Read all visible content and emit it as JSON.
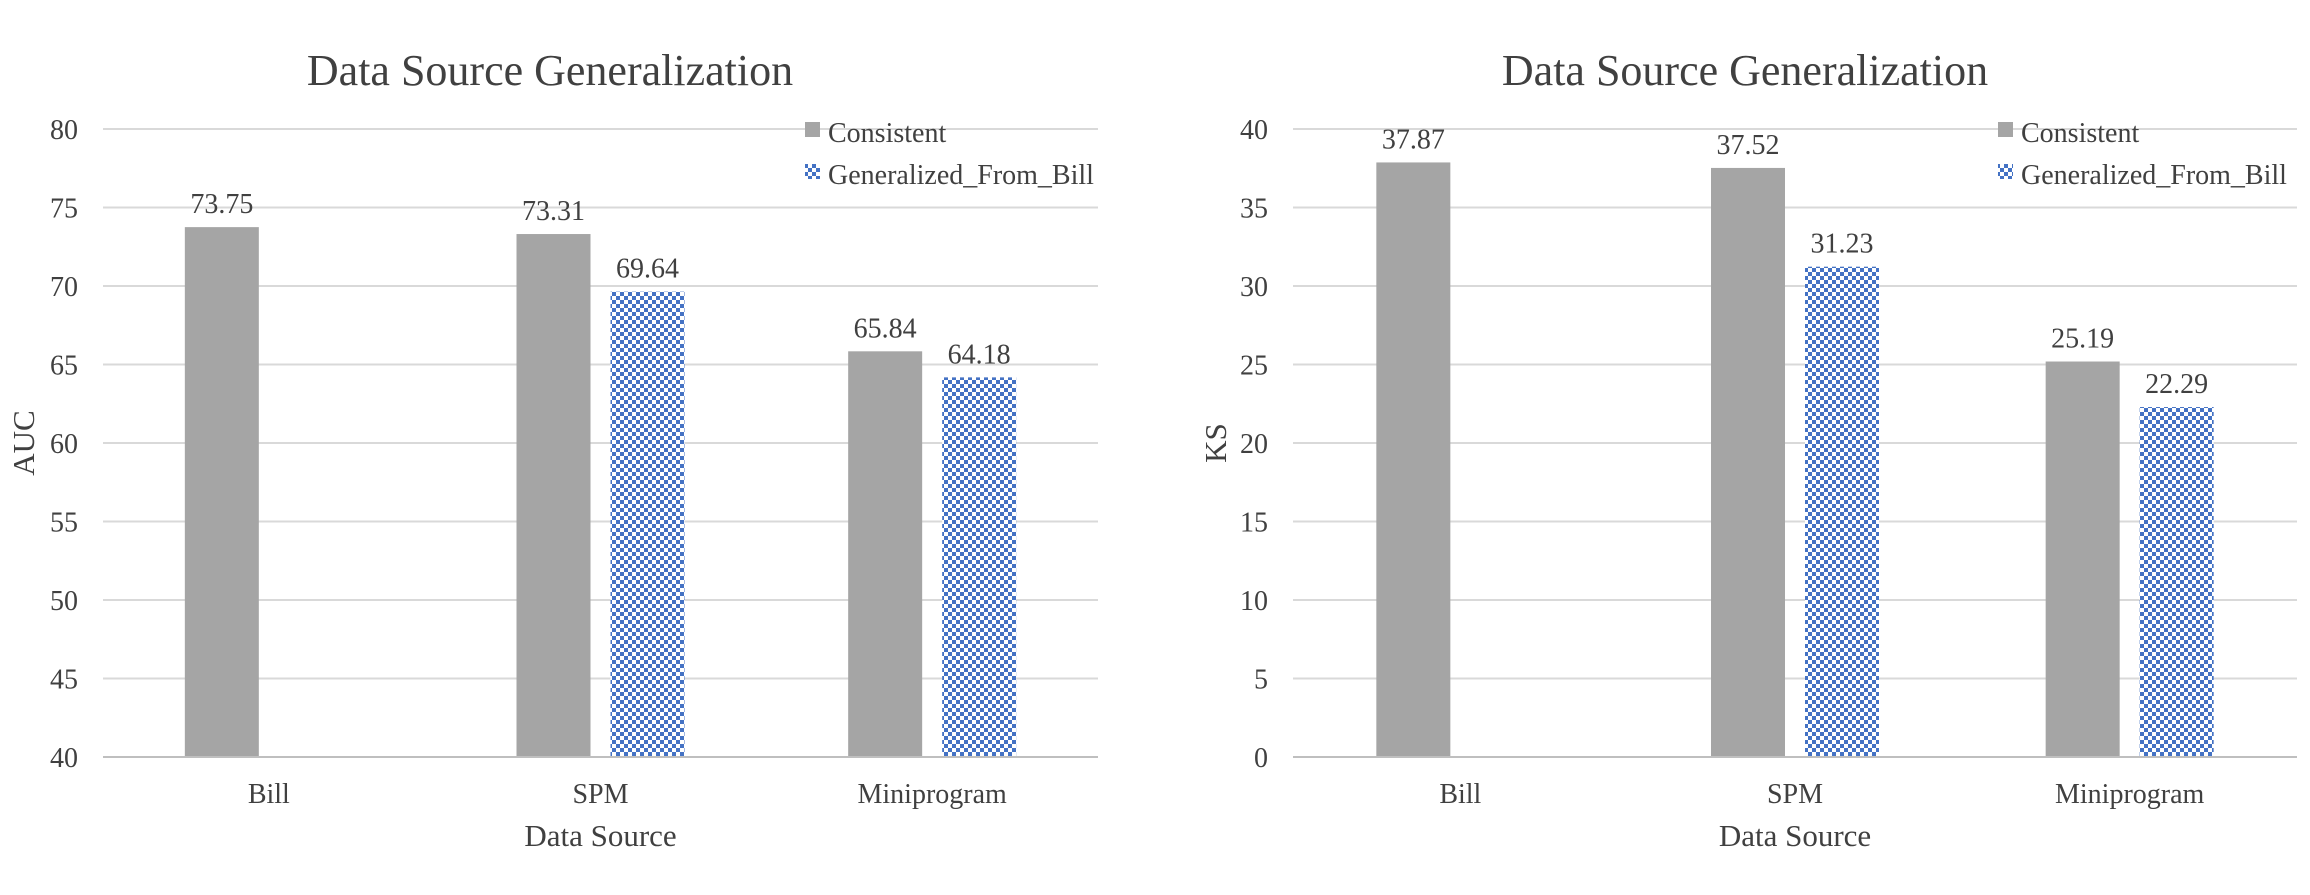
{
  "chart_data": [
    {
      "type": "bar",
      "title": "Data Source Generalization",
      "xlabel": "Data Source",
      "ylabel": "AUC",
      "ylim": [
        40,
        80
      ],
      "yticks": [
        40,
        45,
        50,
        55,
        60,
        65,
        70,
        75,
        80
      ],
      "categories": [
        "Bill",
        "SPM",
        "Miniprogram"
      ],
      "grid": true,
      "legend_position": "top-right",
      "series": [
        {
          "name": "Consistent",
          "values": [
            73.75,
            73.31,
            65.84
          ],
          "labels": [
            "73.75",
            "73.31",
            "65.84"
          ],
          "color": "#a5a5a5",
          "pattern": "solid"
        },
        {
          "name": "Generalized_From_Bill",
          "values": [
            null,
            69.64,
            64.18
          ],
          "labels": [
            "",
            "69.64",
            "64.18"
          ],
          "color": "#4472c4",
          "pattern": "checker"
        }
      ]
    },
    {
      "type": "bar",
      "title": "Data Source Generalization",
      "xlabel": "Data Source",
      "ylabel": "KS",
      "ylim": [
        0,
        40
      ],
      "yticks": [
        0,
        5,
        10,
        15,
        20,
        25,
        30,
        35,
        40
      ],
      "categories": [
        "Bill",
        "SPM",
        "Miniprogram"
      ],
      "grid": true,
      "legend_position": "top-right",
      "series": [
        {
          "name": "Consistent",
          "values": [
            37.87,
            37.52,
            25.19
          ],
          "labels": [
            "37.87",
            "37.52",
            "25.19"
          ],
          "color": "#a5a5a5",
          "pattern": "solid"
        },
        {
          "name": "Generalized_From_Bill",
          "values": [
            null,
            31.23,
            22.29
          ],
          "labels": [
            "",
            "31.23",
            "22.29"
          ],
          "color": "#4472c4",
          "pattern": "checker"
        }
      ]
    }
  ]
}
